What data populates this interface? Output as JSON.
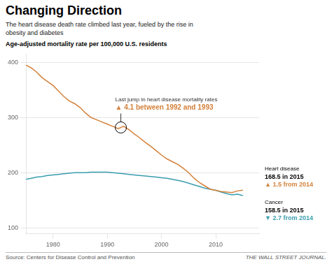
{
  "chart_data": {
    "type": "line",
    "title": "Changing Direction",
    "subtitle": "The heart disease death rate climbed last year, fueled by the rise in\nobesity and diabetes",
    "y_label": "Age-adjusted mortality rate per 100,000 U.S. residents",
    "source": "Source: Centers for Disease Control and Prevention",
    "credit": "THE WALL STREET JOURNAL.",
    "x": [
      1975,
      1976,
      1977,
      1978,
      1979,
      1980,
      1981,
      1982,
      1983,
      1984,
      1985,
      1986,
      1987,
      1988,
      1989,
      1990,
      1991,
      1992,
      1993,
      1994,
      1995,
      1996,
      1997,
      1998,
      1999,
      2000,
      2001,
      2002,
      2003,
      2004,
      2005,
      2006,
      2007,
      2008,
      2009,
      2010,
      2011,
      2012,
      2013,
      2014,
      2015
    ],
    "series": [
      {
        "name": "Heart disease",
        "color": "#d4813a",
        "values": [
          395,
          390,
          382,
          372,
          365,
          358,
          348,
          338,
          330,
          325,
          318,
          308,
          300,
          296,
          292,
          288,
          284,
          280,
          284,
          278,
          270,
          263,
          255,
          248,
          240,
          232,
          225,
          220,
          215,
          208,
          200,
          190,
          182,
          176,
          170,
          168,
          166,
          165,
          164,
          167,
          168.5
        ],
        "end_labels": [
          "168.5 in 2015",
          "▲ 1.5 from 2014"
        ]
      },
      {
        "name": "Cancer",
        "color": "#3a9dae",
        "values": [
          188,
          190,
          192,
          193,
          195,
          196,
          197,
          198,
          199,
          200,
          200,
          200,
          201,
          201,
          201,
          201,
          200,
          199,
          198,
          197,
          196,
          195,
          194,
          193,
          192,
          191,
          190,
          188,
          186,
          184,
          181,
          178,
          175,
          172,
          170,
          168,
          165,
          162,
          160,
          161.2,
          158.5
        ],
        "end_labels": [
          "158.5 in 2015",
          "▼ 2.7 from 2014"
        ]
      }
    ],
    "xlim": [
      1975,
      2018
    ],
    "xticks": [
      1980,
      1990,
      2000,
      2010
    ],
    "ylim": [
      90,
      415
    ],
    "yticks": [
      100,
      200,
      300,
      400
    ],
    "grid": true,
    "annotations": [
      {
        "x": 1992.5,
        "y": 282,
        "marker": "circle",
        "color": "#d4813a",
        "text": [
          "Last jump in heart disease mortality rates",
          "▲ 4.1 between 1992 and 1993"
        ]
      }
    ]
  }
}
